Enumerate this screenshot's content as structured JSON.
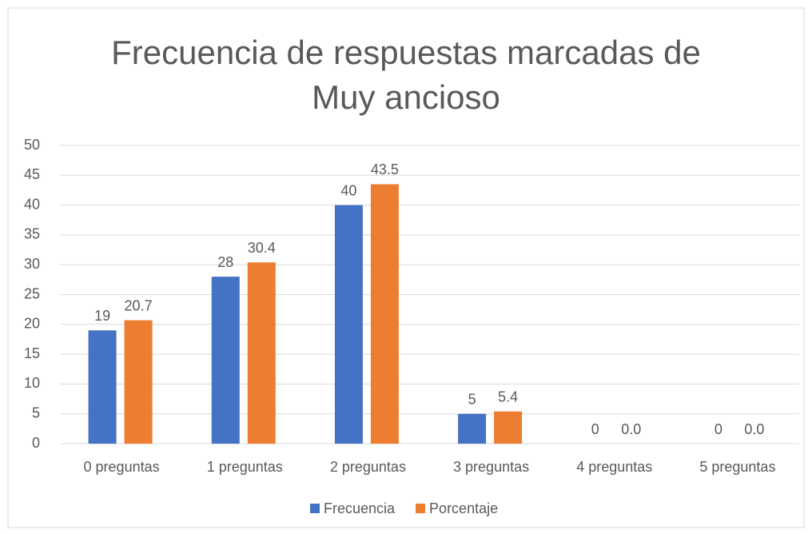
{
  "chart_data": {
    "type": "bar",
    "title": "Frecuencia de respuestas marcadas de Muy ancioso",
    "categories": [
      "0 preguntas",
      "1 preguntas",
      "2 preguntas",
      "3 preguntas",
      "4 preguntas",
      "5 preguntas"
    ],
    "series": [
      {
        "name": "Frecuencia",
        "color": "#4472c4",
        "values": [
          19,
          28,
          40,
          5,
          0,
          0
        ]
      },
      {
        "name": "Porcentaje",
        "color": "#ed7d31",
        "values": [
          20.7,
          30.4,
          43.5,
          5.4,
          0,
          0
        ],
        "value_labels": [
          "20.7",
          "30.4",
          "43.5",
          "5.4",
          "0.0",
          "0.0"
        ]
      }
    ],
    "ylim": [
      0,
      50
    ],
    "yticks": [
      0,
      5,
      10,
      15,
      20,
      25,
      30,
      35,
      40,
      45,
      50
    ],
    "grid": true,
    "legend": "bottom"
  }
}
